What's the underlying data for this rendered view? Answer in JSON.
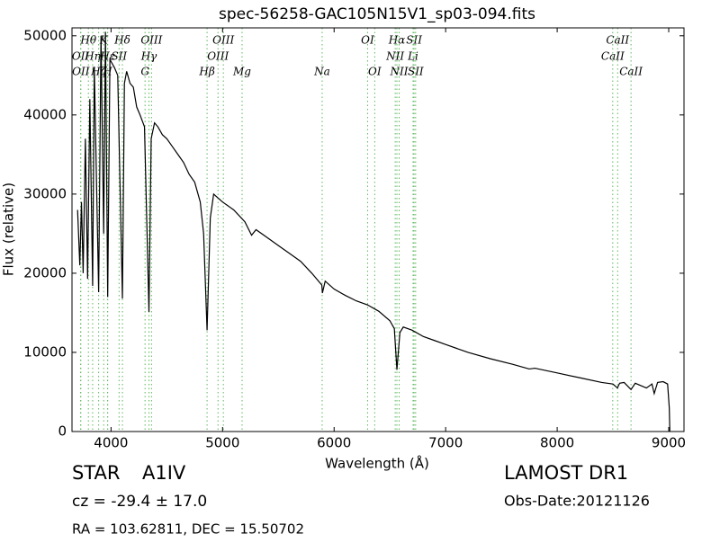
{
  "chart_data": {
    "type": "line",
    "title": "spec-56258-GAC105N15V1_sp03-094.fits",
    "xlabel": "Wavelength (Å)",
    "ylabel": "Flux (relative)",
    "xlim": [
      3650,
      9137
    ],
    "ylim": [
      0,
      51000
    ],
    "xticks": [
      4000,
      5000,
      6000,
      7000,
      8000,
      9000
    ],
    "yticks": [
      0,
      10000,
      20000,
      30000,
      40000,
      50000
    ],
    "color": "#000000",
    "grid": false,
    "x": [
      3700,
      3720,
      3735,
      3750,
      3770,
      3790,
      3810,
      3835,
      3850,
      3889,
      3910,
      3934,
      3950,
      3970,
      3990,
      4030,
      4060,
      4102,
      4120,
      4140,
      4170,
      4200,
      4230,
      4260,
      4300,
      4340,
      4360,
      4390,
      4420,
      4460,
      4500,
      4550,
      4600,
      4650,
      4700,
      4750,
      4800,
      4830,
      4861,
      4890,
      4920,
      4960,
      5000,
      5100,
      5200,
      5260,
      5300,
      5400,
      5500,
      5600,
      5700,
      5800,
      5890,
      5895,
      5920,
      6000,
      6100,
      6200,
      6300,
      6400,
      6500,
      6540,
      6563,
      6590,
      6620,
      6700,
      6800,
      6900,
      7000,
      7200,
      7400,
      7600,
      7700,
      7750,
      7800,
      8000,
      8200,
      8400,
      8500,
      8540,
      8560,
      8600,
      8662,
      8700,
      8750,
      8800,
      8850,
      8870,
      8900,
      8950,
      8990,
      9005,
      9010
    ],
    "values": [
      28000,
      21000,
      29000,
      20000,
      37000,
      19300,
      42000,
      18400,
      46000,
      17600,
      50000,
      25000,
      50500,
      17000,
      47000,
      46000,
      45000,
      16800,
      44000,
      45500,
      44000,
      43500,
      41000,
      40000,
      38500,
      15100,
      37000,
      39000,
      38500,
      37500,
      37000,
      36000,
      35000,
      34000,
      32500,
      31500,
      29000,
      25000,
      12800,
      27000,
      30000,
      29500,
      29000,
      28000,
      26500,
      24800,
      25500,
      24500,
      23500,
      22500,
      21500,
      20000,
      18500,
      17500,
      19000,
      18000,
      17200,
      16500,
      16000,
      15200,
      14000,
      13000,
      7800,
      12500,
      13200,
      12800,
      12000,
      11500,
      11000,
      10000,
      9200,
      8500,
      8100,
      7900,
      8000,
      7400,
      6800,
      6200,
      6000,
      5500,
      6100,
      6200,
      5300,
      6100,
      5800,
      5500,
      6000,
      4800,
      6200,
      6300,
      6000,
      3000,
      0
    ],
    "line_color": "#5cb85c",
    "spectral_lines": [
      {
        "label": "Hθ",
        "x": 3797
      },
      {
        "label": "K",
        "x": 3934
      },
      {
        "label": "Hδ",
        "x": 4102
      },
      {
        "label": "OIII",
        "x": 4363
      },
      {
        "label": "OIII",
        "x": 5007
      },
      {
        "label": "OI",
        "x": 6300
      },
      {
        "label": "Hα",
        "x": 6563
      },
      {
        "label": "SII",
        "x": 6717
      },
      {
        "label": "CaII",
        "x": 8542
      },
      {
        "label": "OII",
        "x": 3727
      },
      {
        "label": "Hη",
        "x": 3835
      },
      {
        "label": "Hε",
        "x": 3970
      },
      {
        "label": "SII",
        "x": 4072
      },
      {
        "label": "Hγ",
        "x": 4340
      },
      {
        "label": "OIII",
        "x": 4959
      },
      {
        "label": "NII",
        "x": 6548
      },
      {
        "label": "Li",
        "x": 6708
      },
      {
        "label": "CaII",
        "x": 8498
      },
      {
        "label": "OII",
        "x": 3729
      },
      {
        "label": "Hζ",
        "x": 3889
      },
      {
        "label": "H",
        "x": 3969
      },
      {
        "label": "G",
        "x": 4305
      },
      {
        "label": "Hβ",
        "x": 4861
      },
      {
        "label": "Mg",
        "x": 5175
      },
      {
        "label": "Na",
        "x": 5893
      },
      {
        "label": "OI",
        "x": 6364
      },
      {
        "label": "NII",
        "x": 6583
      },
      {
        "label": "SII",
        "x": 6731
      },
      {
        "label": "CaII",
        "x": 8662
      }
    ]
  },
  "footer": {
    "object_class": "STAR",
    "subclass": "A1IV",
    "redshift": "cz = -29.4 ± 17.0",
    "coordinates": "RA = 103.62811, DEC = 15.50702",
    "survey": "LAMOST DR1",
    "obs_date": "Obs-Date:20121126"
  }
}
